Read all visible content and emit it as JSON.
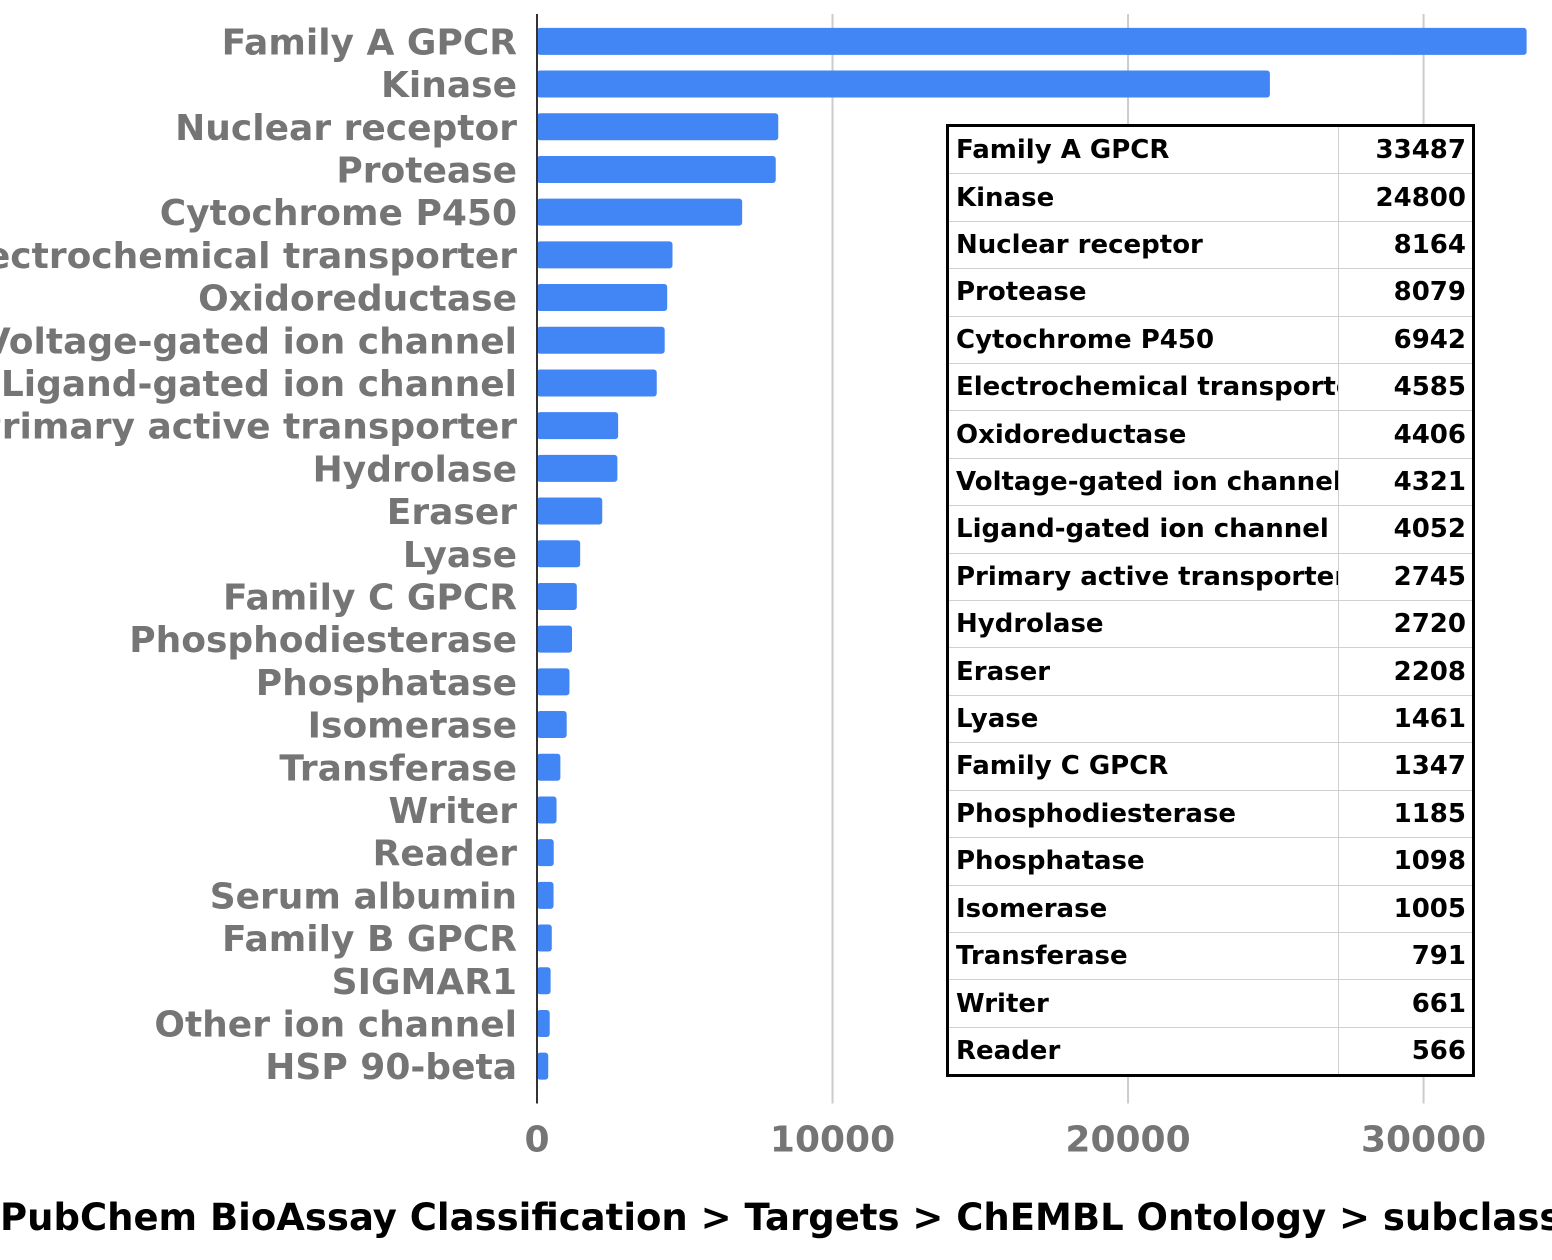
{
  "chart_data": {
    "type": "bar",
    "orientation": "horizontal",
    "categories": [
      "Family A GPCR",
      "Kinase",
      "Nuclear receptor",
      "Protease",
      "Cytochrome P450",
      "Electrochemical transporter",
      "Oxidoreductase",
      "Voltage-gated ion channel",
      "Ligand-gated ion channel",
      "Primary active transporter",
      "Hydrolase",
      "Eraser",
      "Lyase",
      "Family C GPCR",
      "Phosphodiesterase",
      "Phosphatase",
      "Isomerase",
      "Transferase",
      "Writer",
      "Reader",
      "Serum albumin",
      "Family B GPCR",
      "SIGMAR1",
      "Other ion channel",
      "HSP 90-beta"
    ],
    "values": [
      33487,
      24800,
      8164,
      8079,
      6942,
      4585,
      4406,
      4321,
      4052,
      2745,
      2720,
      2208,
      1461,
      1347,
      1185,
      1098,
      1005,
      791,
      661,
      566,
      560,
      500,
      460,
      430,
      380
    ],
    "xlim": [
      0,
      33500
    ],
    "x_ticks": [
      "0",
      "10000",
      "20000",
      "30000"
    ],
    "x_tick_values": [
      0,
      10000,
      20000,
      30000
    ],
    "grid": "vertical",
    "bar_color": "#4285f4",
    "axis_color": "#333333",
    "grid_color": "#cccccc",
    "label_color": "#757575",
    "caption": "PubChem BioAssay Classification > Targets > ChEMBL Ontology > subclass",
    "table": {
      "rows": [
        {
          "name": "Family A GPCR",
          "value": "33487"
        },
        {
          "name": "Kinase",
          "value": "24800"
        },
        {
          "name": "Nuclear receptor",
          "value": "8164"
        },
        {
          "name": "Protease",
          "value": "8079"
        },
        {
          "name": "Cytochrome P450",
          "value": "6942"
        },
        {
          "name": "Electrochemical transporter",
          "value": "4585"
        },
        {
          "name": "Oxidoreductase",
          "value": "4406"
        },
        {
          "name": "Voltage-gated ion channel",
          "value": "4321"
        },
        {
          "name": "Ligand-gated ion channel",
          "value": "4052"
        },
        {
          "name": "Primary active transporter",
          "value": "2745"
        },
        {
          "name": "Hydrolase",
          "value": "2720"
        },
        {
          "name": "Eraser",
          "value": "2208"
        },
        {
          "name": "Lyase",
          "value": "1461"
        },
        {
          "name": "Family C GPCR",
          "value": "1347"
        },
        {
          "name": "Phosphodiesterase",
          "value": "1185"
        },
        {
          "name": "Phosphatase",
          "value": "1098"
        },
        {
          "name": "Isomerase",
          "value": "1005"
        },
        {
          "name": "Transferase",
          "value": "791"
        },
        {
          "name": "Writer",
          "value": "661"
        },
        {
          "name": "Reader",
          "value": "566"
        }
      ]
    }
  }
}
